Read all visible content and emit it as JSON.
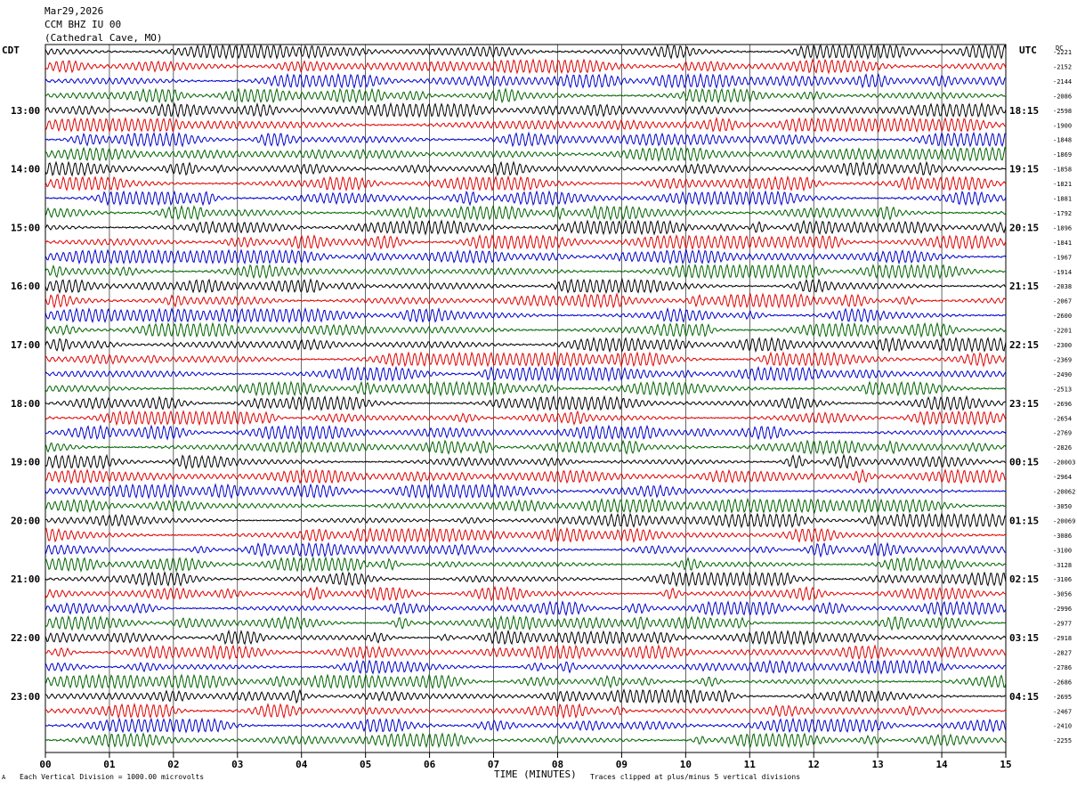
{
  "header": {
    "date": "Mar29,2026",
    "station": "CCM BHZ IU 00",
    "location": "(Cathedral Cave, MO)"
  },
  "tz": {
    "left": "CDT",
    "right": "UTC",
    "dc_label": "DC"
  },
  "footer": {
    "scale_note": "Each Vertical Division = 1000.00 microvolts",
    "xlabel": "TIME (MINUTES)",
    "clip_note": "Traces clipped at plus/minus 5 vertical divisions",
    "mark": "A"
  },
  "chart_data": {
    "type": "line",
    "title": "CCM BHZ IU 00",
    "xlabel": "TIME (MINUTES)",
    "xlim": [
      0,
      15
    ],
    "xticks": [
      "00",
      "01",
      "02",
      "03",
      "04",
      "05",
      "06",
      "07",
      "08",
      "09",
      "10",
      "11",
      "12",
      "13",
      "14",
      "15"
    ],
    "left_time_labels": [
      "13:00",
      "14:00",
      "15:00",
      "16:00",
      "17:00",
      "18:00",
      "19:00",
      "20:00",
      "21:00",
      "22:00",
      "23:00"
    ],
    "right_time_labels": [
      "18:15",
      "19:15",
      "20:15",
      "21:15",
      "22:15",
      "23:15",
      "00:15",
      "01:15",
      "02:15",
      "03:15",
      "04:15"
    ],
    "trace_colors": [
      "#000000",
      "#e00000",
      "#0000cc",
      "#006400"
    ],
    "dc_offsets": [
      "-2221",
      "-2152",
      "-2144",
      "-2086",
      "-2598",
      "-1900",
      "-1848",
      "-1869",
      "-1858",
      "-1821",
      "-1881",
      "-1792",
      "-1896",
      "-1841",
      "-1967",
      "-1914",
      "-2038",
      "-2067",
      "-2600",
      "-2201",
      "-2300",
      "-2369",
      "-2490",
      "-2513",
      "-2696",
      "-2654",
      "-2769",
      "-2826",
      "-20003",
      "-2964",
      "-20062",
      "-3050",
      "-20069",
      "-3086",
      "-3100",
      "-3128",
      "-3106",
      "-3056",
      "-2996",
      "-2977",
      "-2918",
      "-2827",
      "-2786",
      "-2686",
      "-2695",
      "-2467",
      "-2410",
      "-2255"
    ],
    "trace_count": 48,
    "grid": true
  }
}
